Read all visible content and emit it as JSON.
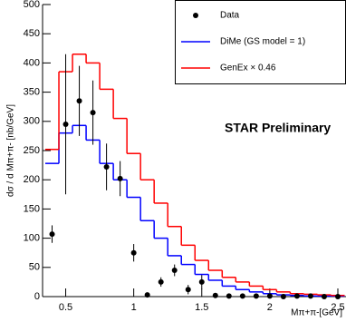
{
  "chart_data": {
    "type": "histogram-with-points",
    "y_label": "dσ / d Mπ+π- [nb/GeV]",
    "x_label": "Mπ+π-[GeV]",
    "annotation": "STAR Preliminary",
    "x": [
      0.4,
      0.5,
      0.6,
      0.7,
      0.8,
      0.9,
      1.0,
      1.1,
      1.2,
      1.3,
      1.4,
      1.5,
      1.6,
      1.7,
      1.8,
      1.9,
      2.0,
      2.1,
      2.2,
      2.3,
      2.4,
      2.5
    ],
    "series": [
      {
        "name": "Data",
        "color": "#000000",
        "style": "points",
        "values": [
          107,
          295,
          335,
          315,
          222,
          202,
          75,
          3,
          25,
          45,
          12,
          25,
          2,
          1,
          1,
          1,
          1,
          0,
          1,
          1,
          0,
          0
        ],
        "errors": [
          15,
          120,
          60,
          55,
          40,
          30,
          15,
          3,
          8,
          10,
          8,
          12,
          3,
          2,
          2,
          2,
          2,
          2,
          2,
          2,
          2,
          2
        ]
      },
      {
        "name": "DiMe (GS model = 1)",
        "color": "#0000ff",
        "style": "step",
        "values": [
          228,
          280,
          293,
          268,
          228,
          200,
          170,
          130,
          100,
          70,
          55,
          38,
          28,
          18,
          12,
          8,
          5,
          3,
          2,
          1,
          1,
          1
        ]
      },
      {
        "name": "GenEx × 0.46",
        "color": "#ff0000",
        "style": "step",
        "values": [
          252,
          385,
          415,
          400,
          355,
          305,
          245,
          200,
          160,
          120,
          88,
          62,
          45,
          33,
          25,
          18,
          12,
          8,
          5,
          4,
          3,
          2
        ]
      }
    ],
    "xlim": [
      0.33,
      2.56
    ],
    "ylim": [
      0,
      500
    ],
    "xticks": [
      0.5,
      1,
      1.5,
      2,
      2.5
    ],
    "yticks": [
      0,
      50,
      100,
      150,
      200,
      250,
      300,
      350,
      400,
      450,
      500
    ]
  }
}
